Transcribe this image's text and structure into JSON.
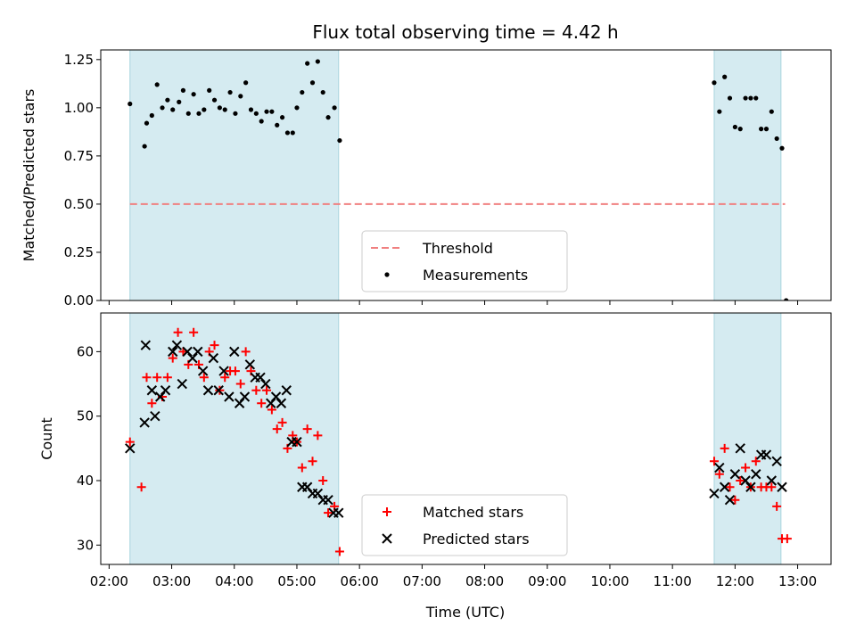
{
  "figure": {
    "title": "Flux total observing time = 4.42 h",
    "xlabel": "Time (UTC)",
    "xticks": [
      "02:00",
      "03:00",
      "04:00",
      "05:00",
      "06:00",
      "07:00",
      "08:00",
      "09:00",
      "10:00",
      "11:00",
      "12:00",
      "13:00"
    ]
  },
  "colors": {
    "shade": "#d5ebf1",
    "threshold": "#f08080",
    "matched": "#ff0000",
    "predicted": "#000000",
    "measurements": "#000000"
  },
  "chart_data": [
    {
      "type": "scatter",
      "ylabel": "Matched/Predicted stars",
      "ylim": [
        0,
        1.3
      ],
      "xlim": [
        "01:52",
        "13:32"
      ],
      "yticks": [
        "0.00",
        "0.25",
        "0.50",
        "0.75",
        "1.00",
        "1.25"
      ],
      "shaded_spans": [
        [
          "02:20",
          "05:40"
        ],
        [
          "11:40",
          "12:44"
        ]
      ],
      "threshold": {
        "name": "Threshold",
        "value": 0.5,
        "x_range": [
          "02:20",
          "12:48"
        ]
      },
      "legend": {
        "loc": "lower center",
        "entries": [
          "Threshold",
          "Measurements"
        ]
      },
      "series": [
        {
          "name": "Measurements",
          "marker": "dot",
          "points": [
            [
              "02:20",
              1.02
            ],
            [
              "02:34",
              0.8
            ],
            [
              "02:36",
              0.92
            ],
            [
              "02:41",
              0.96
            ],
            [
              "02:46",
              1.12
            ],
            [
              "02:51",
              1.0
            ],
            [
              "02:56",
              1.04
            ],
            [
              "03:01",
              0.99
            ],
            [
              "03:07",
              1.03
            ],
            [
              "03:11",
              1.09
            ],
            [
              "03:16",
              0.97
            ],
            [
              "03:21",
              1.07
            ],
            [
              "03:26",
              0.97
            ],
            [
              "03:31",
              0.99
            ],
            [
              "03:36",
              1.09
            ],
            [
              "03:41",
              1.04
            ],
            [
              "03:46",
              1.0
            ],
            [
              "03:51",
              0.99
            ],
            [
              "03:56",
              1.08
            ],
            [
              "04:01",
              0.97
            ],
            [
              "04:06",
              1.06
            ],
            [
              "04:11",
              1.13
            ],
            [
              "04:16",
              0.99
            ],
            [
              "04:21",
              0.97
            ],
            [
              "04:26",
              0.93
            ],
            [
              "04:31",
              0.98
            ],
            [
              "04:36",
              0.98
            ],
            [
              "04:41",
              0.91
            ],
            [
              "04:46",
              0.95
            ],
            [
              "04:51",
              0.87
            ],
            [
              "04:56",
              0.87
            ],
            [
              "05:00",
              1.0
            ],
            [
              "05:05",
              1.08
            ],
            [
              "05:10",
              1.23
            ],
            [
              "05:15",
              1.13
            ],
            [
              "05:20",
              1.24
            ],
            [
              "05:25",
              1.08
            ],
            [
              "05:30",
              0.95
            ],
            [
              "05:36",
              1.0
            ],
            [
              "05:41",
              0.83
            ],
            [
              "11:40",
              1.13
            ],
            [
              "11:45",
              0.98
            ],
            [
              "11:50",
              1.16
            ],
            [
              "11:55",
              1.05
            ],
            [
              "12:00",
              0.9
            ],
            [
              "12:05",
              0.89
            ],
            [
              "12:10",
              1.05
            ],
            [
              "12:15",
              1.05
            ],
            [
              "12:20",
              1.05
            ],
            [
              "12:25",
              0.89
            ],
            [
              "12:30",
              0.89
            ],
            [
              "12:35",
              0.98
            ],
            [
              "12:40",
              0.84
            ],
            [
              "12:45",
              0.79
            ],
            [
              "12:49",
              0.0
            ]
          ]
        }
      ]
    },
    {
      "type": "scatter",
      "ylabel": "Count",
      "ylim": [
        27,
        66
      ],
      "xlim": [
        "01:52",
        "13:32"
      ],
      "yticks": [
        "30",
        "40",
        "50",
        "60"
      ],
      "shaded_spans": [
        [
          "02:20",
          "05:40"
        ],
        [
          "11:40",
          "12:44"
        ]
      ],
      "legend": {
        "loc": "lower center",
        "entries": [
          "Matched stars",
          "Predicted stars"
        ]
      },
      "series": [
        {
          "name": "Matched stars",
          "marker": "+",
          "points": [
            [
              "02:20",
              46
            ],
            [
              "02:31",
              39
            ],
            [
              "02:36",
              56
            ],
            [
              "02:41",
              52
            ],
            [
              "02:46",
              56
            ],
            [
              "02:51",
              53
            ],
            [
              "02:56",
              56
            ],
            [
              "03:01",
              59
            ],
            [
              "03:06",
              63
            ],
            [
              "03:11",
              60
            ],
            [
              "03:16",
              58
            ],
            [
              "03:21",
              63
            ],
            [
              "03:26",
              58
            ],
            [
              "03:31",
              56
            ],
            [
              "03:36",
              60
            ],
            [
              "03:41",
              61
            ],
            [
              "03:46",
              54
            ],
            [
              "03:51",
              56
            ],
            [
              "03:56",
              57
            ],
            [
              "04:01",
              57
            ],
            [
              "04:06",
              55
            ],
            [
              "04:11",
              60
            ],
            [
              "04:16",
              57
            ],
            [
              "04:21",
              54
            ],
            [
              "04:26",
              52
            ],
            [
              "04:31",
              54
            ],
            [
              "04:36",
              51
            ],
            [
              "04:41",
              48
            ],
            [
              "04:46",
              49
            ],
            [
              "04:51",
              45
            ],
            [
              "04:56",
              47
            ],
            [
              "05:00",
              46
            ],
            [
              "05:05",
              42
            ],
            [
              "05:10",
              48
            ],
            [
              "05:15",
              43
            ],
            [
              "05:20",
              47
            ],
            [
              "05:25",
              40
            ],
            [
              "05:30",
              35
            ],
            [
              "05:36",
              36
            ],
            [
              "05:41",
              29
            ],
            [
              "11:40",
              43
            ],
            [
              "11:45",
              41
            ],
            [
              "11:50",
              45
            ],
            [
              "11:55",
              39
            ],
            [
              "12:00",
              37
            ],
            [
              "12:05",
              40
            ],
            [
              "12:10",
              42
            ],
            [
              "12:15",
              39
            ],
            [
              "12:20",
              43
            ],
            [
              "12:25",
              39
            ],
            [
              "12:30",
              39
            ],
            [
              "12:35",
              39
            ],
            [
              "12:40",
              36
            ],
            [
              "12:45",
              31
            ],
            [
              "12:50",
              31
            ]
          ]
        },
        {
          "name": "Predicted stars",
          "marker": "x",
          "points": [
            [
              "02:20",
              45
            ],
            [
              "02:35",
              61
            ],
            [
              "02:34",
              49
            ],
            [
              "02:41",
              54
            ],
            [
              "02:44",
              50
            ],
            [
              "02:49",
              53
            ],
            [
              "02:54",
              54
            ],
            [
              "03:01",
              60
            ],
            [
              "03:05",
              61
            ],
            [
              "03:10",
              55
            ],
            [
              "03:15",
              60
            ],
            [
              "03:20",
              59
            ],
            [
              "03:25",
              60
            ],
            [
              "03:30",
              57
            ],
            [
              "03:35",
              54
            ],
            [
              "03:40",
              59
            ],
            [
              "03:45",
              54
            ],
            [
              "03:50",
              57
            ],
            [
              "03:55",
              53
            ],
            [
              "04:00",
              60
            ],
            [
              "04:05",
              52
            ],
            [
              "04:10",
              53
            ],
            [
              "04:15",
              58
            ],
            [
              "04:20",
              56
            ],
            [
              "04:25",
              56
            ],
            [
              "04:30",
              55
            ],
            [
              "04:35",
              52
            ],
            [
              "04:40",
              53
            ],
            [
              "04:45",
              52
            ],
            [
              "04:50",
              54
            ],
            [
              "04:55",
              46
            ],
            [
              "05:00",
              46
            ],
            [
              "05:05",
              39
            ],
            [
              "05:10",
              39
            ],
            [
              "05:15",
              38
            ],
            [
              "05:20",
              38
            ],
            [
              "05:25",
              37
            ],
            [
              "05:30",
              37
            ],
            [
              "05:35",
              35
            ],
            [
              "05:40",
              35
            ],
            [
              "11:40",
              38
            ],
            [
              "11:45",
              42
            ],
            [
              "11:50",
              39
            ],
            [
              "11:55",
              37
            ],
            [
              "12:00",
              41
            ],
            [
              "12:05",
              45
            ],
            [
              "12:10",
              40
            ],
            [
              "12:15",
              39
            ],
            [
              "12:20",
              41
            ],
            [
              "12:25",
              44
            ],
            [
              "12:30",
              44
            ],
            [
              "12:35",
              40
            ],
            [
              "12:40",
              43
            ],
            [
              "12:45",
              39
            ]
          ]
        }
      ]
    }
  ]
}
